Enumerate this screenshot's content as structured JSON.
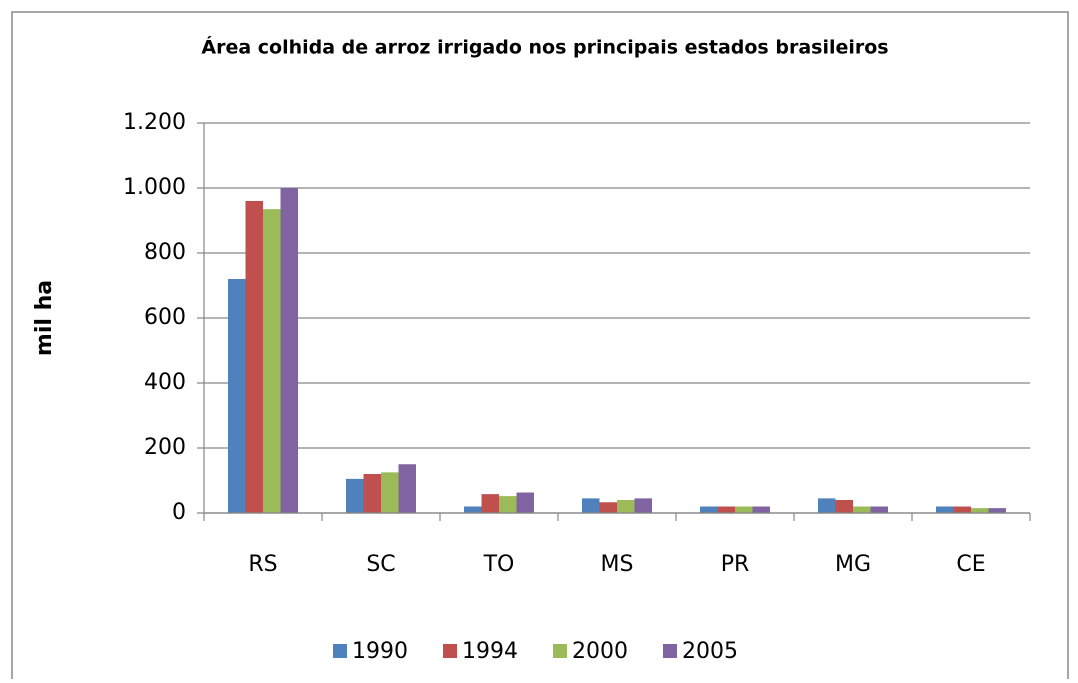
{
  "chart_data": {
    "type": "bar",
    "title": "Área colhida de arroz irrigado nos principais estados brasileiros",
    "y_label": "mil ha",
    "categories": [
      "RS",
      "SC",
      "TO",
      "MS",
      "PR",
      "MG",
      "CE"
    ],
    "series": [
      {
        "name": "1990",
        "color": "#4f81bd",
        "values": [
          720,
          105,
          20,
          45,
          20,
          45,
          20
        ]
      },
      {
        "name": "1994",
        "color": "#c0504d",
        "values": [
          960,
          120,
          58,
          33,
          20,
          40,
          20
        ]
      },
      {
        "name": "2000",
        "color": "#9bbb59",
        "values": [
          935,
          125,
          52,
          40,
          20,
          20,
          15
        ]
      },
      {
        "name": "2005",
        "color": "#8064a2",
        "values": [
          1000,
          150,
          63,
          45,
          20,
          20,
          15
        ]
      }
    ],
    "ylim": [
      0,
      1200
    ],
    "yticks": [
      0,
      200,
      400,
      600,
      800,
      {
        "value": 1000,
        "label": "1.000"
      },
      {
        "value": 1200,
        "label": "1.200"
      }
    ],
    "grid": true,
    "legend": "bottom"
  }
}
